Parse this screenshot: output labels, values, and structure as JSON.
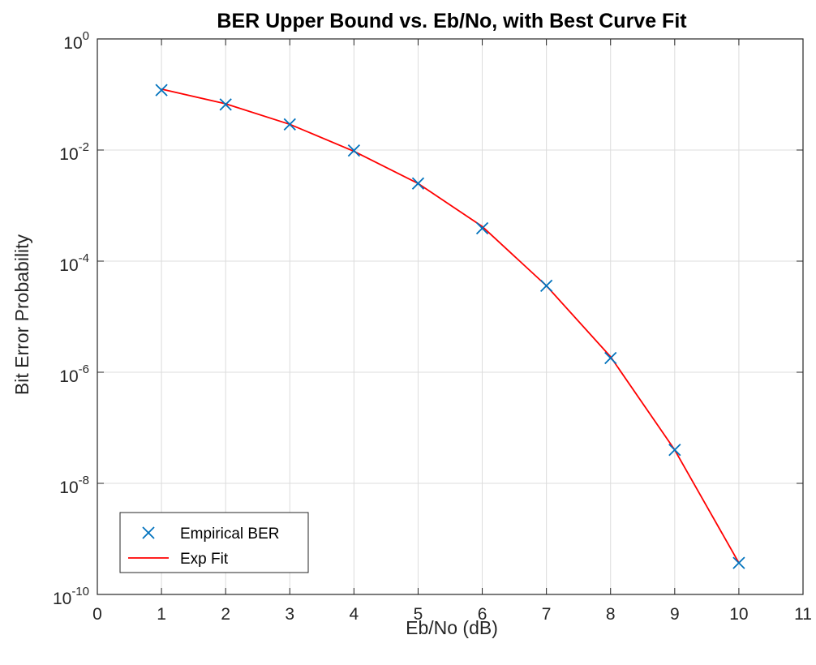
{
  "chart_data": {
    "type": "line",
    "title": "BER Upper Bound vs. Eb/No, with Best Curve Fit",
    "xlabel": "Eb/No (dB)",
    "ylabel": "Bit Error Probability",
    "xlim": [
      0,
      11
    ],
    "ylim": [
      1e-10,
      1
    ],
    "yscale": "log",
    "xticks": [
      "0",
      "1",
      "2",
      "3",
      "4",
      "5",
      "6",
      "7",
      "8",
      "9",
      "10",
      "11"
    ],
    "yticks": [
      {
        "base": "10",
        "exp": "0"
      },
      {
        "base": "10",
        "exp": "-2"
      },
      {
        "base": "10",
        "exp": "-4"
      },
      {
        "base": "10",
        "exp": "-6"
      },
      {
        "base": "10",
        "exp": "-8"
      },
      {
        "base": "10",
        "exp": "-10"
      }
    ],
    "grid": true,
    "legend_position": "bottom-left",
    "series": [
      {
        "name": "Empirical BER",
        "style": "markers",
        "marker": "x",
        "color": "#0072bd",
        "x": [
          1,
          2,
          3,
          4,
          5,
          6,
          7,
          8,
          9,
          10
        ],
        "y": [
          0.12,
          0.066,
          0.029,
          0.0098,
          0.0025,
          0.00039,
          3.6e-05,
          1.8e-06,
          4e-08,
          3.7e-10
        ]
      },
      {
        "name": "Exp Fit",
        "style": "line",
        "color": "#ff0000",
        "x": [
          1,
          2,
          3,
          4,
          5,
          6,
          7,
          8,
          9,
          10
        ],
        "y": [
          0.125,
          0.068,
          0.029,
          0.0095,
          0.0025,
          0.00042,
          3.6e-05,
          1.9e-06,
          4e-08,
          3.7e-10
        ]
      }
    ]
  }
}
